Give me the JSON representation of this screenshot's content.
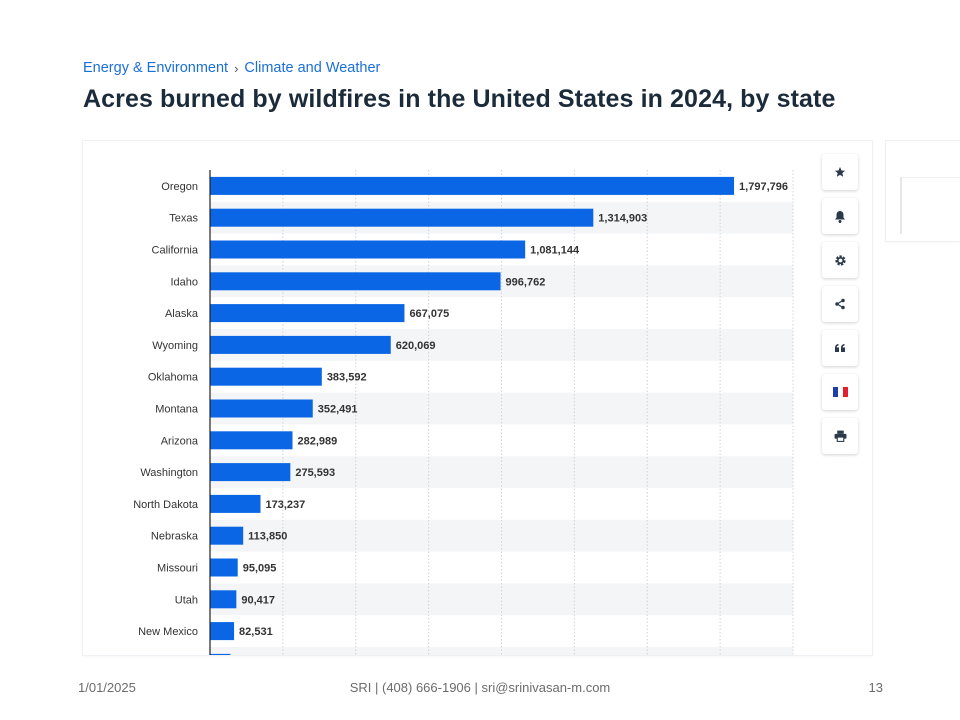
{
  "breadcrumb": {
    "items": [
      "Energy & Environment",
      "Climate and Weather"
    ],
    "separator": "›"
  },
  "title": "Acres burned by wildfires in the United States in 2024, by state",
  "toolbar": {
    "buttons": [
      {
        "name": "star-icon"
      },
      {
        "name": "bell-icon"
      },
      {
        "name": "gear-icon"
      },
      {
        "name": "share-icon"
      },
      {
        "name": "quote-icon"
      },
      {
        "name": "french-flag-icon"
      },
      {
        "name": "print-icon"
      }
    ]
  },
  "footer": {
    "date": "1/01/2025",
    "contact": "SRI | (408) 666-1906 | sri@srinivasan-m.com",
    "page": "13"
  },
  "colors": {
    "bar": "#0a66e4",
    "link": "#1a6fd8",
    "title": "#1c2b3a",
    "band": "#f4f5f7",
    "grid": "#cfd4da"
  },
  "chart_data": {
    "type": "bar",
    "orientation": "horizontal",
    "categories": [
      "Oregon",
      "Texas",
      "California",
      "Idaho",
      "Alaska",
      "Wyoming",
      "Oklahoma",
      "Montana",
      "Arizona",
      "Washington",
      "North Dakota",
      "Nebraska",
      "Missouri",
      "Utah",
      "New Mexico"
    ],
    "values": [
      1797796,
      1314903,
      1081144,
      996762,
      667075,
      620069,
      383592,
      352491,
      282989,
      275593,
      173237,
      113850,
      95095,
      90417,
      82531
    ],
    "value_labels": [
      "1,797,796",
      "1,314,903",
      "1,081,144",
      "996,762",
      "667,075",
      "620,069",
      "383,592",
      "352,491",
      "282,989",
      "275,593",
      "173,237",
      "113,850",
      "95,095",
      "90,417",
      "82,531"
    ],
    "xlim": [
      0,
      2000000
    ],
    "grid": true,
    "legend": "none",
    "truncated_next_value": 70000
  }
}
